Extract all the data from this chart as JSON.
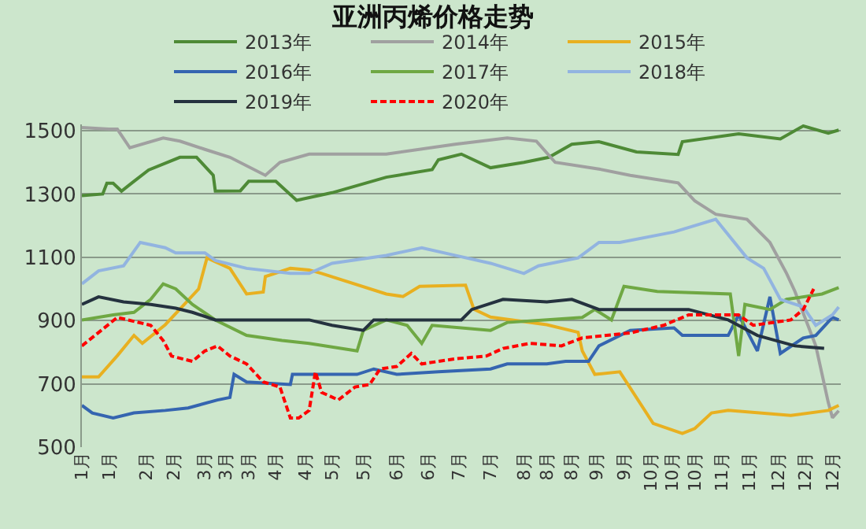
{
  "chart_data": {
    "type": "line",
    "title": "亚洲丙烯价格走势",
    "xlim": [
      "--01-01",
      "--12-31"
    ],
    "xticks": [
      {
        "value": "--01-01",
        "label": "1月"
      },
      {
        "value": "--01-14",
        "label": "1月"
      },
      {
        "value": "--02-01",
        "label": "2月"
      },
      {
        "value": "--02-14",
        "label": "2月"
      },
      {
        "value": "--03-01",
        "label": "3月"
      },
      {
        "value": "--03-11",
        "label": "3月"
      },
      {
        "value": "--03-22",
        "label": "3月"
      },
      {
        "value": "--04-04",
        "label": "4月"
      },
      {
        "value": "--04-18",
        "label": "4月"
      },
      {
        "value": "--05-01",
        "label": "5月"
      },
      {
        "value": "--05-16",
        "label": "5月"
      },
      {
        "value": "--06-01",
        "label": "6月"
      },
      {
        "value": "--06-16",
        "label": "6月"
      },
      {
        "value": "--07-01",
        "label": "7月"
      },
      {
        "value": "--07-16",
        "label": "7月"
      },
      {
        "value": "--08-01",
        "label": "8月"
      },
      {
        "value": "--08-12",
        "label": "8月"
      },
      {
        "value": "--08-24",
        "label": "8月"
      },
      {
        "value": "--09-05",
        "label": "9月"
      },
      {
        "value": "--09-18",
        "label": "9月"
      },
      {
        "value": "--10-01",
        "label": "10月"
      },
      {
        "value": "--10-11",
        "label": "10月"
      },
      {
        "value": "--10-22",
        "label": "10月"
      },
      {
        "value": "--11-04",
        "label": "11月"
      },
      {
        "value": "--11-17",
        "label": "11月"
      },
      {
        "value": "--12-01",
        "label": "12月"
      },
      {
        "value": "--12-14",
        "label": "12月"
      },
      {
        "value": "--12-27",
        "label": "12月"
      }
    ],
    "ylim": [
      500,
      1520
    ],
    "yticks": [
      500,
      700,
      900,
      1100,
      1300,
      1500
    ],
    "grid": "y",
    "legend": "top",
    "marker": "none",
    "line_style": "solid",
    "series": [
      {
        "name": "2013年",
        "color": "#4e8a36",
        "x": [
          "--01-01",
          "--01-11",
          "--01-13",
          "--01-16",
          "--01-20",
          "--01-25",
          "--02-02",
          "--02-17",
          "--02-25",
          "--03-05",
          "--03-06",
          "--03-18",
          "--03-22",
          "--04-04",
          "--04-14",
          "--05-01",
          "--05-27",
          "--06-18",
          "--06-21",
          "--07-02",
          "--07-16",
          "--08-01",
          "--08-13",
          "--08-24",
          "--09-06",
          "--09-24",
          "--10-14",
          "--10-16",
          "--11-12",
          "--12-02",
          "--12-13",
          "--12-25",
          "--12-30"
        ],
        "values": [
          1295,
          1300,
          1334,
          1334,
          1309,
          1335,
          1376,
          1416,
          1416,
          1359,
          1309,
          1310,
          1340,
          1340,
          1280,
          1304,
          1353,
          1377,
          1408,
          1426,
          1383,
          1400,
          1416,
          1457,
          1465,
          1433,
          1425,
          1465,
          1490,
          1474,
          1515,
          1492,
          1502
        ]
      },
      {
        "name": "2014年",
        "color": "#a0a0a0",
        "x": [
          "--01-01",
          "--01-14",
          "--01-18",
          "--01-24",
          "--02-09",
          "--02-17",
          "--03-01",
          "--03-13",
          "--03-30",
          "--04-06",
          "--04-20",
          "--05-27",
          "--06-29",
          "--07-24",
          "--08-07",
          "--08-16",
          "--09-06",
          "--09-21",
          "--10-14",
          "--10-22",
          "--11-01",
          "--11-16",
          "--11-27",
          "--12-05",
          "--12-09",
          "--12-19",
          "--12-25",
          "--12-27",
          "--12-30"
        ],
        "values": [
          1510,
          1505,
          1505,
          1446,
          1477,
          1467,
          1441,
          1416,
          1359,
          1400,
          1426,
          1426,
          1457,
          1477,
          1467,
          1400,
          1379,
          1359,
          1335,
          1278,
          1236,
          1220,
          1147,
          1049,
          992,
          820,
          641,
          593,
          615
        ]
      },
      {
        "name": "2015年",
        "color": "#e8b020",
        "x": [
          "--01-01",
          "--01-09",
          "--01-18",
          "--01-26",
          "--01-30",
          "--02-10",
          "--02-18",
          "--02-26",
          "--03-02",
          "--03-13",
          "--03-21",
          "--03-29",
          "--03-30",
          "--04-11",
          "--04-20",
          "--04-26",
          "--05-27",
          "--06-04",
          "--06-12",
          "--07-04",
          "--07-08",
          "--07-16",
          "--08-12",
          "--08-27",
          "--08-29",
          "--09-04",
          "--09-16",
          "--10-02",
          "--10-16",
          "--10-22",
          "--10-30",
          "--11-07",
          "--12-07",
          "--12-25",
          "--12-30"
        ],
        "values": [
          722,
          722,
          789,
          853,
          828,
          887,
          943,
          1000,
          1098,
          1065,
          984,
          990,
          1039,
          1065,
          1060,
          1049,
          984,
          976,
          1008,
          1012,
          936,
          911,
          887,
          863,
          804,
          730,
          738,
          575,
          543,
          559,
          608,
          616,
          600,
          616,
          632
        ]
      },
      {
        "name": "2016年",
        "color": "#3565b0",
        "x": [
          "--01-01",
          "--01-06",
          "--01-16",
          "--01-26",
          "--02-10",
          "--02-21",
          "--03-07",
          "--03-13",
          "--03-15",
          "--03-21",
          "--04-11",
          "--04-12",
          "--04-20",
          "--05-13",
          "--05-21",
          "--06-01",
          "--06-21",
          "--07-16",
          "--07-24",
          "--08-12",
          "--08-21",
          "--09-01",
          "--09-06",
          "--09-21",
          "--10-12",
          "--10-16",
          "--11-07",
          "--11-12",
          "--11-21",
          "--11-27",
          "--12-02",
          "--12-13",
          "--12-19",
          "--12-27",
          "--12-30"
        ],
        "values": [
          632,
          608,
          592,
          608,
          616,
          624,
          649,
          657,
          730,
          706,
          698,
          730,
          730,
          730,
          747,
          730,
          738,
          747,
          763,
          763,
          771,
          771,
          820,
          869,
          877,
          853,
          853,
          918,
          804,
          975,
          796,
          845,
          853,
          910,
          902
        ]
      },
      {
        "name": "2017年",
        "color": "#6fa843",
        "x": [
          "--01-01",
          "--01-16",
          "--01-26",
          "--02-03",
          "--02-09",
          "--02-15",
          "--02-23",
          "--03-06",
          "--03-21",
          "--04-07",
          "--04-20",
          "--05-13",
          "--05-16",
          "--05-27",
          "--06-06",
          "--06-13",
          "--06-18",
          "--07-16",
          "--07-24",
          "--08-29",
          "--09-04",
          "--09-12",
          "--09-18",
          "--10-04",
          "--11-08",
          "--11-12",
          "--11-15",
          "--11-27",
          "--12-05",
          "--12-22",
          "--12-30"
        ],
        "values": [
          902,
          918,
          926,
          967,
          1016,
          1000,
          951,
          902,
          853,
          837,
          828,
          804,
          869,
          902,
          885,
          828,
          885,
          869,
          894,
          910,
          935,
          902,
          1008,
          992,
          984,
          788,
          951,
          935,
          967,
          984,
          1004
        ]
      },
      {
        "name": "2018年",
        "color": "#92b4e0",
        "x": [
          "--01-01",
          "--01-09",
          "--01-21",
          "--01-29",
          "--02-10",
          "--02-15",
          "--03-01",
          "--03-06",
          "--03-21",
          "--04-11",
          "--04-20",
          "--05-01",
          "--05-27",
          "--06-13",
          "--06-29",
          "--07-16",
          "--08-01",
          "--08-08",
          "--08-27",
          "--09-06",
          "--09-16",
          "--10-12",
          "--11-01",
          "--11-16",
          "--11-24",
          "--12-02",
          "--12-13",
          "--12-19",
          "--12-27",
          "--12-30"
        ],
        "values": [
          1016,
          1057,
          1073,
          1147,
          1130,
          1114,
          1114,
          1090,
          1065,
          1049,
          1049,
          1081,
          1106,
          1130,
          1106,
          1081,
          1049,
          1073,
          1098,
          1147,
          1147,
          1180,
          1220,
          1098,
          1065,
          967,
          943,
          885,
          918,
          943
        ]
      },
      {
        "name": "2019年",
        "color": "#25323f",
        "x": [
          "--01-01",
          "--01-09",
          "--01-21",
          "--02-03",
          "--02-15",
          "--02-23",
          "--03-06",
          "--04-20",
          "--05-01",
          "--05-16",
          "--05-21",
          "--07-02",
          "--07-07",
          "--07-22",
          "--08-12",
          "--08-24",
          "--09-06",
          "--09-12",
          "--10-19",
          "--11-07",
          "--11-21",
          "--12-09",
          "--12-23"
        ],
        "values": [
          951,
          975,
          959,
          951,
          939,
          926,
          902,
          902,
          885,
          869,
          902,
          902,
          935,
          967,
          959,
          967,
          935,
          935,
          935,
          902,
          853,
          820,
          812
        ]
      },
      {
        "name": "2020年",
        "color": "#ff0000",
        "line_style": "dashed",
        "x": [
          "--01-01",
          "--01-18",
          "--02-03",
          "--02-09",
          "--02-13",
          "--02-23",
          "--03-01",
          "--03-07",
          "--03-13",
          "--03-21",
          "--03-29",
          "--04-06",
          "--04-11",
          "--04-15",
          "--04-20",
          "--04-23",
          "--04-26",
          "--05-04",
          "--05-12",
          "--05-19",
          "--05-24",
          "--06-01",
          "--06-08",
          "--06-13",
          "--06-29",
          "--07-14",
          "--07-22",
          "--08-04",
          "--08-19",
          "--08-29",
          "--09-21",
          "--10-07",
          "--10-19",
          "--11-12",
          "--11-19",
          "--12-07",
          "--12-13",
          "--12-18"
        ],
        "values": [
          820,
          910,
          885,
          837,
          788,
          771,
          804,
          820,
          788,
          763,
          706,
          690,
          592,
          592,
          616,
          738,
          673,
          649,
          690,
          698,
          747,
          755,
          796,
          763,
          779,
          788,
          812,
          828,
          820,
          845,
          861,
          885,
          918,
          918,
          885,
          902,
          935,
          1000
        ]
      }
    ]
  }
}
